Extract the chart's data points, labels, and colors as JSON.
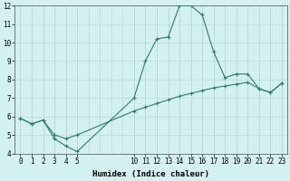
{
  "line1_x": [
    0,
    1,
    2,
    3,
    4,
    5,
    10,
    11,
    12,
    13,
    14,
    15,
    16,
    17,
    18,
    19,
    20,
    21,
    22,
    23
  ],
  "line1_y": [
    5.9,
    5.6,
    5.8,
    4.8,
    4.4,
    4.1,
    7.0,
    9.0,
    10.2,
    10.3,
    12.0,
    12.0,
    11.5,
    9.5,
    8.1,
    8.3,
    8.3,
    7.5,
    7.3,
    7.8
  ],
  "line2_x": [
    0,
    1,
    2,
    3,
    4,
    5,
    10,
    11,
    12,
    13,
    14,
    15,
    16,
    17,
    18,
    19,
    20,
    21,
    22,
    23
  ],
  "line2_y": [
    5.9,
    5.6,
    5.8,
    5.0,
    4.8,
    5.0,
    6.3,
    6.5,
    6.7,
    6.9,
    7.1,
    7.25,
    7.4,
    7.55,
    7.65,
    7.75,
    7.85,
    7.5,
    7.3,
    7.8
  ],
  "line_color": "#2d7d6f",
  "bg_color": "#d4f0f0",
  "grid_color": "#b8dada",
  "xlabel": "Humidex (Indice chaleur)",
  "xlim": [
    -0.5,
    23.5
  ],
  "ylim": [
    4,
    12
  ],
  "xticks": [
    0,
    1,
    2,
    3,
    4,
    5,
    10,
    11,
    12,
    13,
    14,
    15,
    16,
    17,
    18,
    19,
    20,
    21,
    22,
    23
  ],
  "xtick_labels": [
    "0",
    "1",
    "2",
    "3",
    "4",
    "5",
    "10",
    "11",
    "12",
    "13",
    "14",
    "15",
    "16",
    "17",
    "18",
    "19",
    "20",
    "21",
    "22",
    "23"
  ],
  "yticks": [
    4,
    5,
    6,
    7,
    8,
    9,
    10,
    11,
    12
  ],
  "ytick_labels": [
    "4",
    "5",
    "6",
    "7",
    "8",
    "9",
    "10",
    "11",
    "12"
  ]
}
